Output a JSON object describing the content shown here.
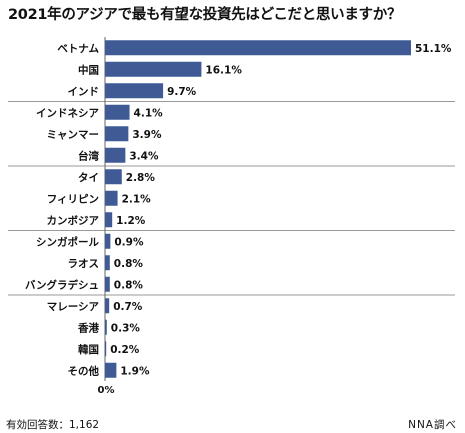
{
  "chart_data": {
    "type": "bar",
    "orientation": "horizontal",
    "title": "2021年のアジアで最も有望な投資先はどこだと思いますか？",
    "categories": [
      "ベトナム",
      "中国",
      "インド",
      "インドネシア",
      "ミャンマー",
      "台湾",
      "タイ",
      "フィリピン",
      "カンボジア",
      "シンガポール",
      "ラオス",
      "バングラデシュ",
      "マレーシア",
      "香港",
      "韓国",
      "その他"
    ],
    "values": [
      51.1,
      16.1,
      9.7,
      4.1,
      3.9,
      3.4,
      2.8,
      2.1,
      1.2,
      0.9,
      0.8,
      0.8,
      0.7,
      0.3,
      0.2,
      1.9
    ],
    "value_labels": [
      "51.1%",
      "16.1%",
      "9.7%",
      "4.1%",
      "3.9%",
      "3.4%",
      "2.8%",
      "2.1%",
      "1.2%",
      "0.9%",
      "0.8%",
      "0.8%",
      "0.7%",
      "0.3%",
      "0.2%",
      "1.9%"
    ],
    "zero_label": "0%",
    "xlim": [
      0,
      51.1
    ],
    "group_breaks_after": [
      2,
      5,
      8,
      11
    ],
    "bar_color": "#3f5a94",
    "divider_color": "#9a9a9a",
    "grid": false
  },
  "footer": {
    "respondents": "有効回答数：1,162",
    "source": "NNA調べ"
  }
}
